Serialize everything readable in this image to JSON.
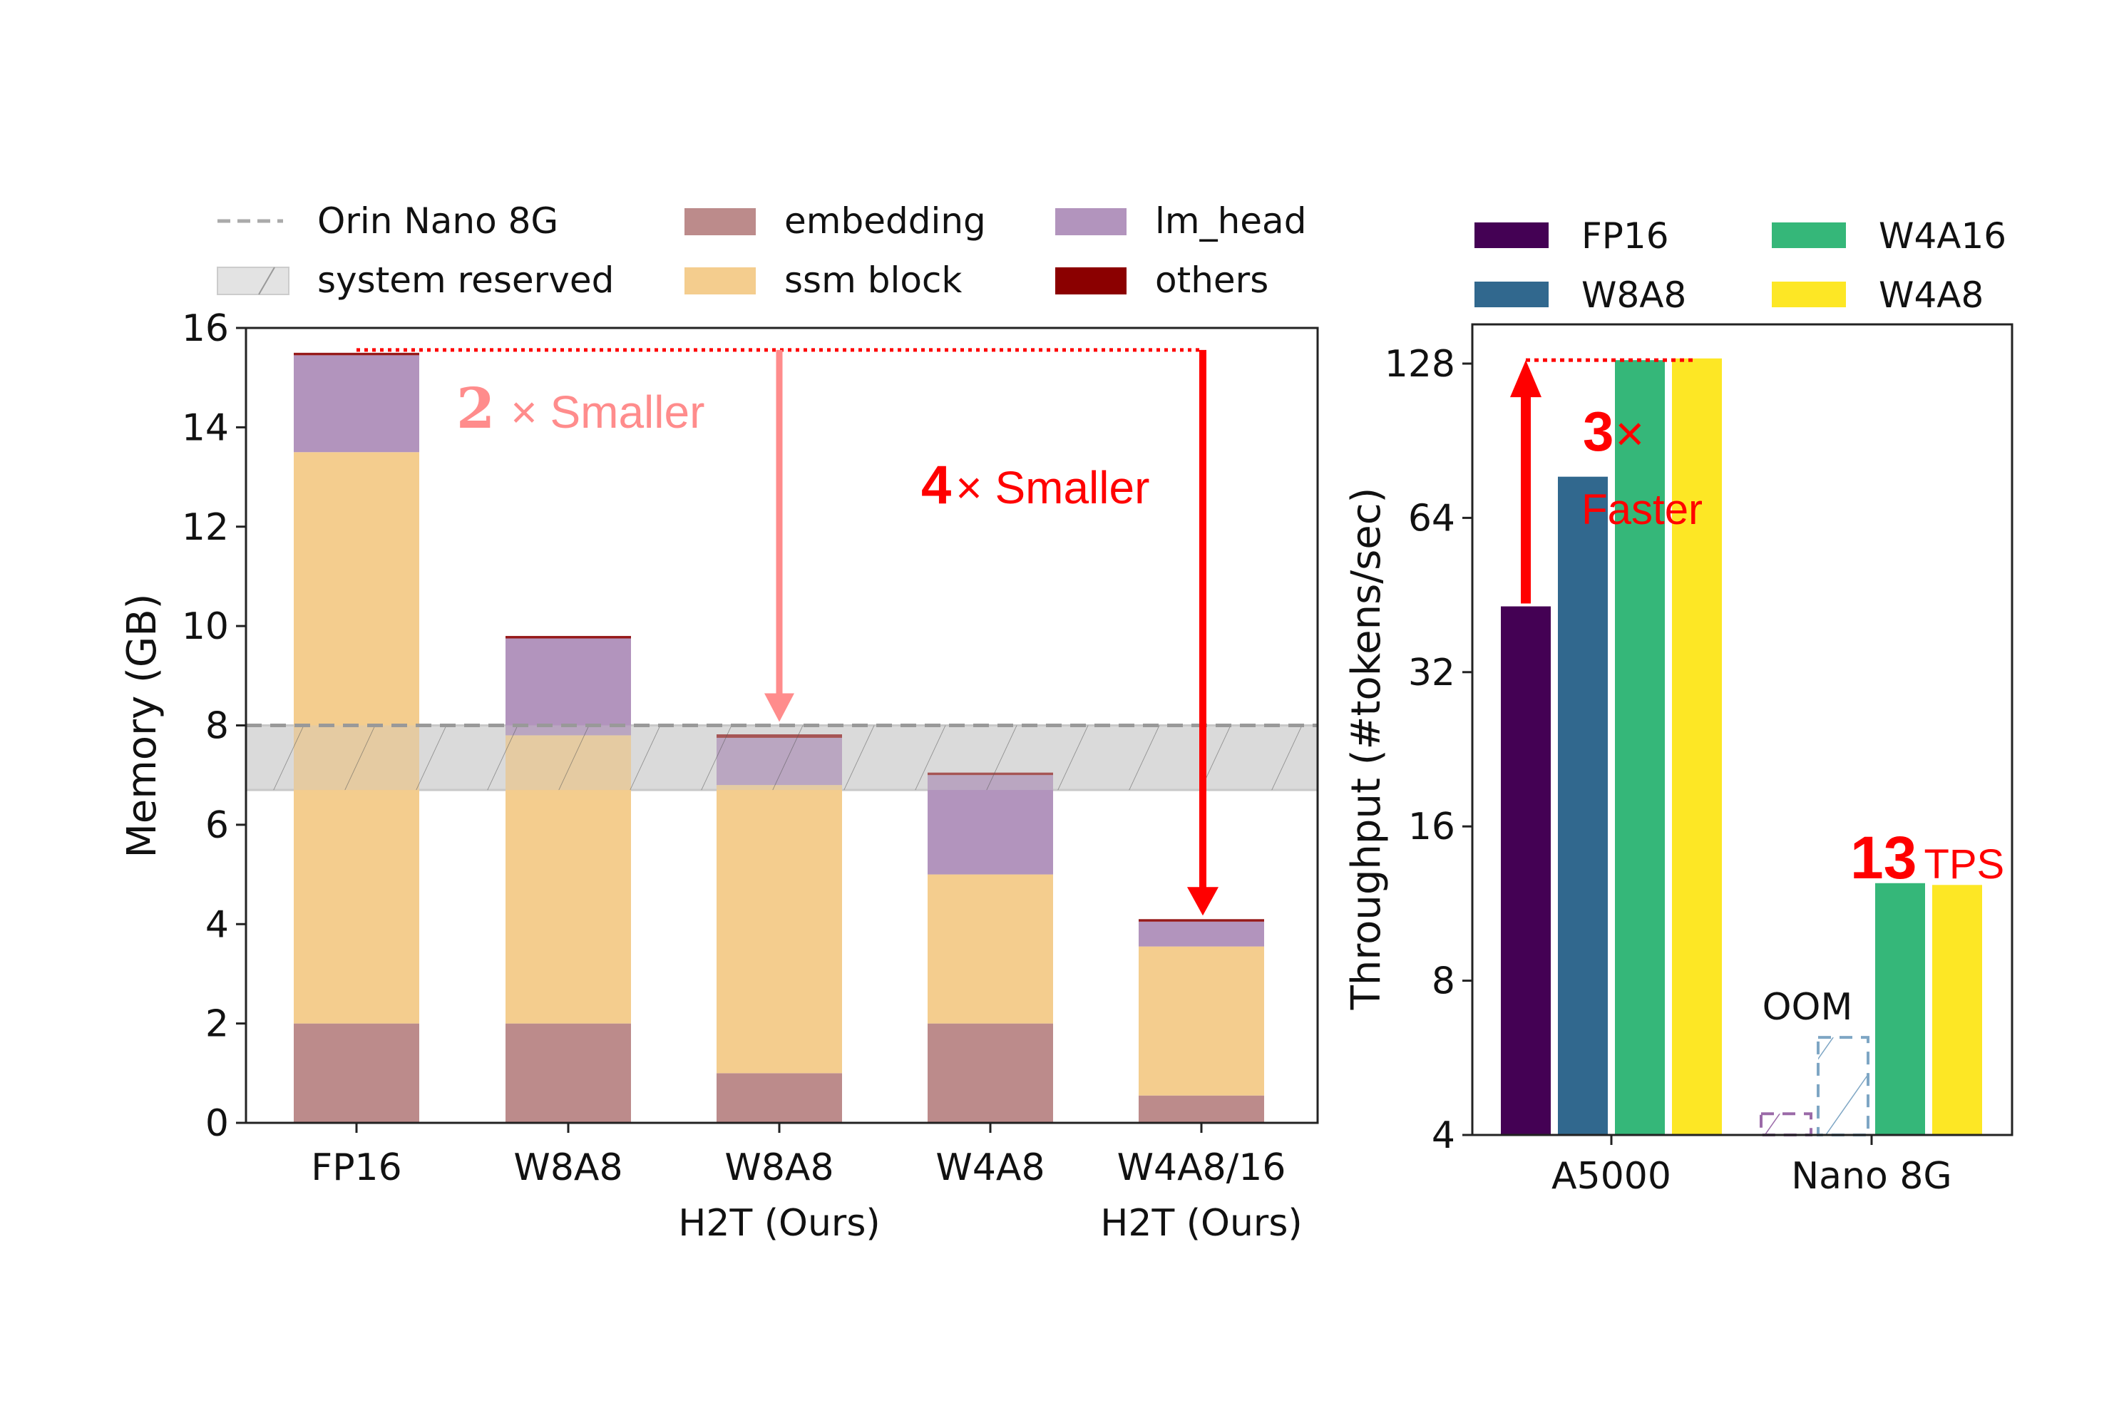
{
  "chart_data": [
    {
      "type": "bar",
      "stacked": true,
      "title": "",
      "xlabel": "",
      "ylabel": "Memory (GB)",
      "ylim": [
        0,
        16
      ],
      "yticks": [
        0,
        2,
        4,
        6,
        8,
        10,
        12,
        14,
        16
      ],
      "grid": false,
      "legend_position": "top (above plot, 3 columns)",
      "categories": [
        "FP16",
        "W8A8",
        "W8A8\nH2T (Ours)",
        "W4A8",
        "W4A8/16\nH2T (Ours)"
      ],
      "category_lines": [
        [
          "FP16"
        ],
        [
          "W8A8"
        ],
        [
          "W8A8",
          "H2T (Ours)"
        ],
        [
          "W4A8"
        ],
        [
          "W4A8/16",
          "H2T (Ours)"
        ]
      ],
      "series": [
        {
          "name": "embedding",
          "color": "#bc8b8b",
          "values": [
            2.0,
            2.0,
            1.0,
            2.0,
            0.55
          ]
        },
        {
          "name": "ssm block",
          "color": "#f4cd8e",
          "values": [
            11.5,
            5.8,
            5.8,
            3.0,
            3.0
          ]
        },
        {
          "name": "lm_head",
          "color": "#b294bd",
          "values": [
            1.95,
            1.95,
            0.95,
            2.0,
            0.5
          ]
        },
        {
          "name": "others",
          "color": "#8b0000",
          "values": [
            0.05,
            0.05,
            0.07,
            0.05,
            0.05
          ]
        }
      ],
      "reference_line": {
        "name": "Orin Nano 8G",
        "value": 8.0,
        "style": "dashed",
        "color": "#999999"
      },
      "reference_band": {
        "name": "system reserved",
        "range": [
          6.7,
          8.0
        ],
        "color": "#e3e3e3",
        "hatch": "/"
      },
      "legend": [
        {
          "label": "Orin Nano 8G",
          "kind": "dashed-line",
          "color": "#aaaaaa"
        },
        {
          "label": "embedding",
          "kind": "patch",
          "color": "#bc8b8b"
        },
        {
          "label": "lm_head",
          "kind": "patch",
          "color": "#b294bd"
        },
        {
          "label": "system reserved",
          "kind": "hatch-patch",
          "color": "#e3e3e3"
        },
        {
          "label": "ssm block",
          "kind": "patch",
          "color": "#f4cd8e"
        },
        {
          "label": "others",
          "kind": "patch",
          "color": "#8b0000"
        }
      ],
      "annotations": [
        {
          "text_bold": "2",
          "text_rest": "× Smaller",
          "color": "#ff8c8c",
          "from_value": 15.5,
          "to_category": "W8A8\nH2T (Ours)",
          "to_value": 8.0
        },
        {
          "text_bold": "4",
          "text_rest": "× Smaller",
          "color": "#ff0000",
          "from_value": 15.5,
          "to_category": "W4A8/16\nH2T (Ours)",
          "to_value": 4.1
        }
      ]
    },
    {
      "type": "bar",
      "grouped": true,
      "title": "",
      "xlabel": "",
      "ylabel": "Throughput (#tokens/sec)",
      "yscale": "log2",
      "ylim": [
        4,
        150
      ],
      "yticks": [
        4,
        8,
        16,
        32,
        64,
        128
      ],
      "grid": false,
      "legend_position": "top (above plot, 2 columns)",
      "categories": [
        "A5000",
        "Nano 8G"
      ],
      "series": [
        {
          "name": "FP16",
          "color": "#440154",
          "values": [
            43,
            null
          ],
          "oom": [
            false,
            true
          ],
          "oom_placeholder": [
            null,
            4.4
          ]
        },
        {
          "name": "W8A8",
          "color": "#31688e",
          "values": [
            77,
            null
          ],
          "oom": [
            false,
            true
          ],
          "oom_placeholder": [
            null,
            6.2
          ]
        },
        {
          "name": "W4A16",
          "color": "#35b779",
          "values": [
            130,
            12.4
          ],
          "oom": [
            false,
            false
          ]
        },
        {
          "name": "W4A8",
          "color": "#fde725",
          "values": [
            131,
            12.3
          ],
          "oom": [
            false,
            false
          ]
        }
      ],
      "oom_label": "OOM",
      "annotations": [
        {
          "text_bold": "3",
          "text_rest": "×",
          "subtext": "Faster",
          "color": "#ff0000",
          "from_value": 43,
          "to_value": 130
        },
        {
          "text_bold": "13",
          "text_rest": "TPS",
          "color": "#ff0000",
          "category": "Nano 8G"
        }
      ]
    }
  ]
}
